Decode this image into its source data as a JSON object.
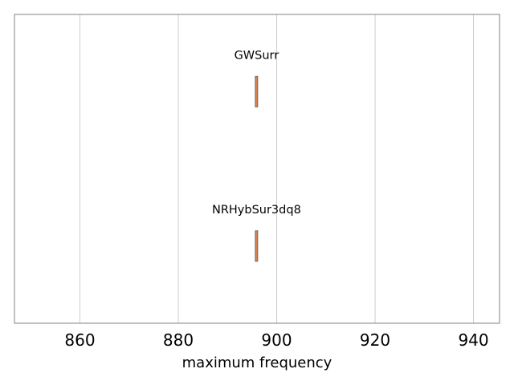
{
  "chart_data": {
    "type": "box",
    "orientation": "horizontal",
    "title": "",
    "xlabel": "maximum frequency",
    "ylabel": "",
    "xlim": [
      846.7,
      945.3
    ],
    "xticks": [
      860,
      880,
      900,
      920,
      940
    ],
    "xtick_labels": [
      "860",
      "880",
      "900",
      "920",
      "940"
    ],
    "grid": "vertical",
    "legend": "none",
    "series": [
      {
        "name": "GWSurr",
        "value": 895.9
      },
      {
        "name": "NRHybSur3dq8",
        "value": 895.9
      }
    ],
    "colors": {
      "frame": "#808080",
      "grid": "#cccccc",
      "box_fill": "#dd8452",
      "box_edge": "#555555"
    }
  }
}
